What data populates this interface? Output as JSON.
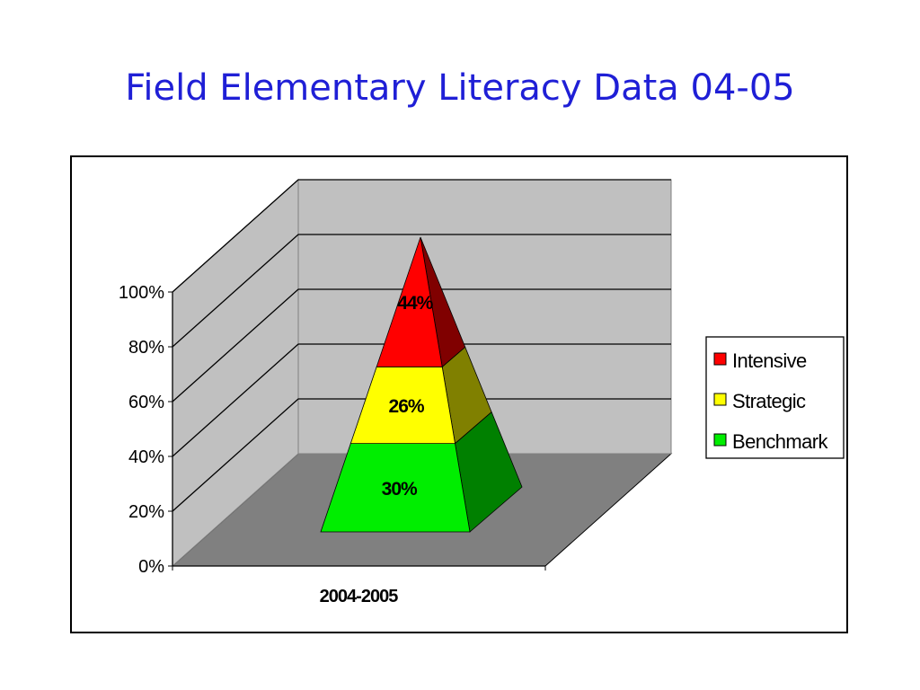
{
  "slide": {
    "title": "Field Elementary Literacy Data 04-05"
  },
  "chart_data": {
    "type": "pyramid",
    "subtype": "3d-stacked-100-percent",
    "categories": [
      "2004-2005"
    ],
    "series": [
      {
        "name": "Benchmark",
        "values": [
          30
        ],
        "label": "30%"
      },
      {
        "name": "Strategic",
        "values": [
          26
        ],
        "label": "26%"
      },
      {
        "name": "Intensive",
        "values": [
          44
        ],
        "label": "44%"
      }
    ],
    "yticks": [
      "0%",
      "20%",
      "40%",
      "60%",
      "80%",
      "100%"
    ],
    "ylim": [
      0,
      100
    ],
    "grid": true,
    "legend": {
      "position": "right",
      "order": [
        "Intensive",
        "Strategic",
        "Benchmark"
      ]
    },
    "colors": {
      "Benchmark": "#00ee00",
      "Strategic": "#ffff00",
      "Intensive": "#ff0000",
      "Benchmark_side": "#008000",
      "Strategic_side": "#808000",
      "Intensive_side": "#800000",
      "walls": "#c0c0c0",
      "floor": "#808080"
    }
  }
}
